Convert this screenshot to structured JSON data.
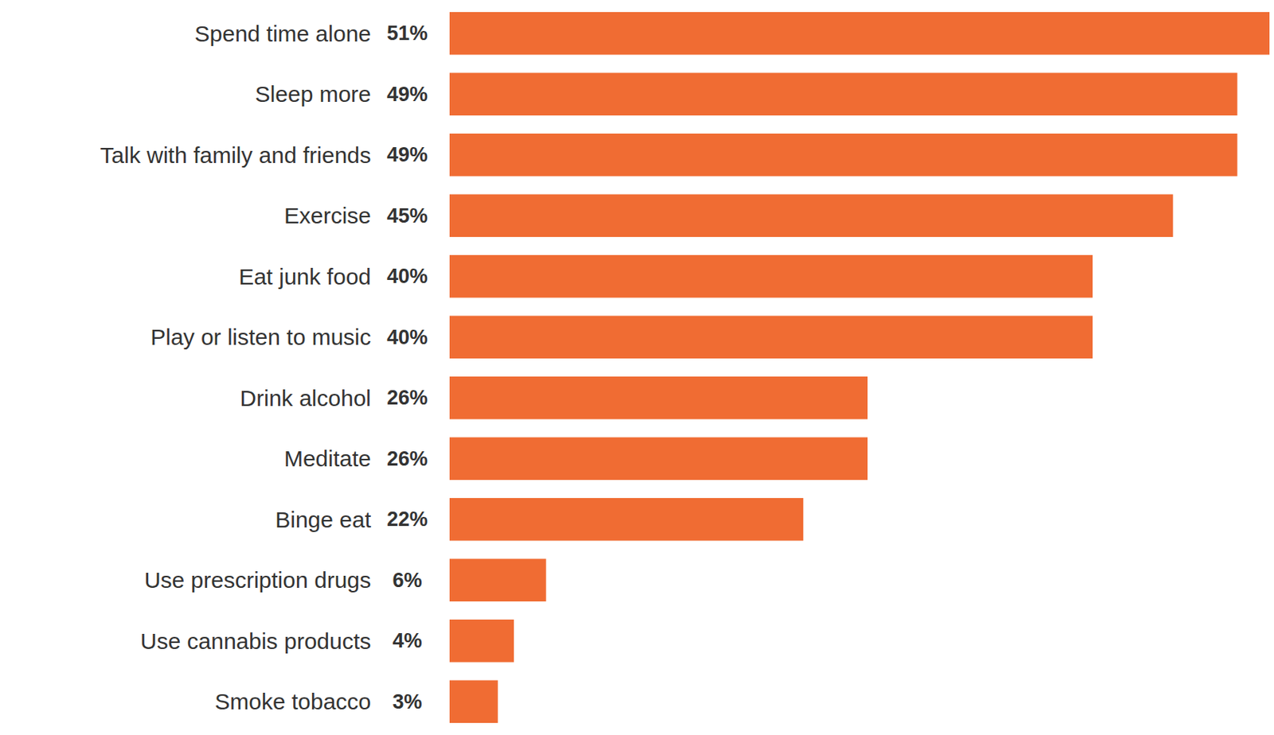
{
  "chart_data": {
    "type": "bar",
    "orientation": "horizontal",
    "categories": [
      "Spend time alone",
      "Sleep more",
      "Talk with family and friends",
      "Exercise",
      "Eat junk food",
      "Play or listen to music",
      "Drink alcohol",
      "Meditate",
      "Binge eat",
      "Use prescription drugs",
      "Use cannabis products",
      "Smoke tobacco"
    ],
    "values": [
      51,
      49,
      49,
      45,
      40,
      40,
      26,
      26,
      22,
      6,
      4,
      3
    ],
    "value_labels": [
      "51%",
      "49%",
      "49%",
      "45%",
      "40%",
      "40%",
      "26%",
      "26%",
      "22%",
      "6%",
      "4%",
      "3%"
    ],
    "data_labels": true,
    "color": "#f06c33",
    "xlim": [
      0,
      51
    ],
    "grid": false,
    "tick_labels": "y"
  }
}
